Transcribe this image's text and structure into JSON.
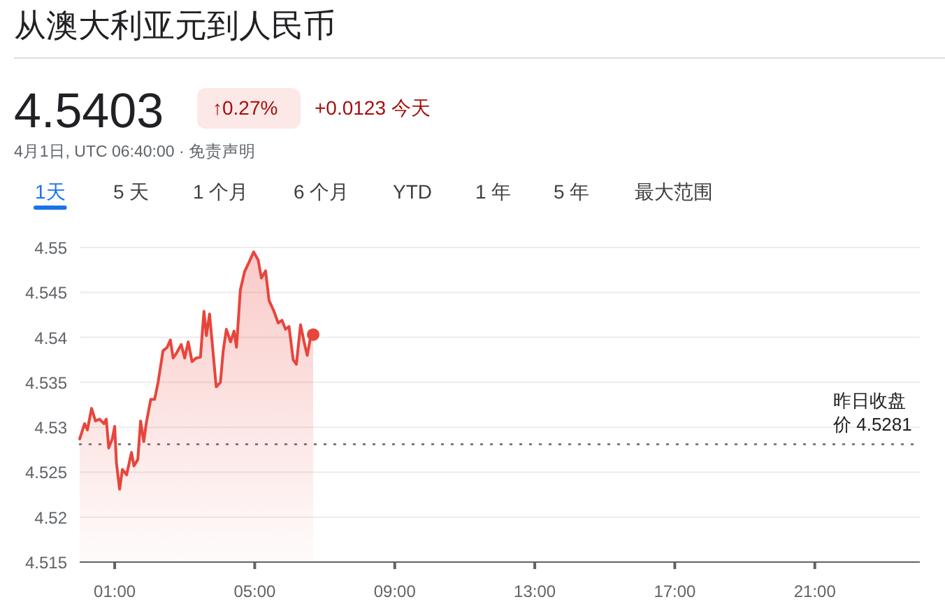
{
  "chart_data": {
    "type": "area",
    "title": "从澳大利亚元到人民币",
    "annotations": [
      "4.5403",
      "↑0.27%",
      "+0.0123 今天",
      "4月1日, UTC 06:40:00 · 免责声明",
      "1天",
      "5 天",
      "1 个月",
      "6 个月",
      "YTD",
      "1 年",
      "5 年",
      "最大范围"
    ],
    "series": [
      {
        "color": "#e8453c",
        "x": [
          0,
          0.14,
          0.22,
          0.34,
          0.45,
          0.57,
          0.69,
          0.76,
          0.83,
          0.93,
          1.0,
          1.05,
          1.14,
          1.22,
          1.34,
          1.48,
          1.55,
          1.66,
          1.74,
          1.83,
          1.9,
          2.03,
          2.14,
          2.24,
          2.38,
          2.5,
          2.59,
          2.67,
          2.76,
          2.9,
          3.0,
          3.1,
          3.21,
          3.33,
          3.45,
          3.55,
          3.62,
          3.71,
          3.79,
          3.9,
          4.02,
          4.1,
          4.19,
          4.31,
          4.41,
          4.48,
          4.59,
          4.71,
          4.83,
          4.97,
          5.1,
          5.19,
          5.31,
          5.41,
          5.55,
          5.67,
          5.78,
          5.88,
          5.98,
          6.1,
          6.19,
          6.31,
          6.41,
          6.5,
          6.59,
          6.67
        ],
        "values": [
          4.5287,
          4.5304,
          4.5297,
          4.5321,
          4.5307,
          4.5309,
          4.5304,
          4.5309,
          4.5277,
          4.5287,
          4.5301,
          4.526,
          4.5231,
          4.5253,
          4.5247,
          4.5272,
          4.5257,
          4.5264,
          4.5307,
          4.5284,
          4.5304,
          4.5331,
          4.5331,
          4.535,
          4.5385,
          4.5389,
          4.5397,
          4.5377,
          4.5382,
          4.5392,
          4.5377,
          4.5395,
          4.5373,
          4.5377,
          4.5378,
          4.5429,
          4.5402,
          4.5426,
          4.5392,
          4.5345,
          4.535,
          4.5385,
          4.5409,
          4.5395,
          4.5407,
          4.5389,
          4.5453,
          4.5473,
          4.5483,
          4.5495,
          4.5486,
          4.5466,
          4.5474,
          4.5441,
          4.5429,
          4.5416,
          4.5419,
          4.5409,
          4.5412,
          4.5375,
          4.537,
          4.5414,
          4.5395,
          4.538,
          4.5399,
          4.5403
        ]
      }
    ],
    "xlim": [
      0,
      24
    ],
    "xticks": [
      {
        "value": 1,
        "label": "01:00"
      },
      {
        "value": 5,
        "label": "05:00"
      },
      {
        "value": 9,
        "label": "09:00"
      },
      {
        "value": 13,
        "label": "13:00"
      },
      {
        "value": 17,
        "label": "17:00"
      },
      {
        "value": 21,
        "label": "21:00"
      }
    ],
    "ylim": [
      4.515,
      4.55
    ],
    "yticks": [
      4.515,
      4.52,
      4.525,
      4.53,
      4.535,
      4.54,
      4.545,
      4.55
    ],
    "grid": "y",
    "ref_lines": [
      {
        "axis": "y",
        "value": 4.5281,
        "label": "昨日收盘价 4.5281",
        "color": "#5f6368",
        "line_style": "dotted"
      }
    ]
  }
}
